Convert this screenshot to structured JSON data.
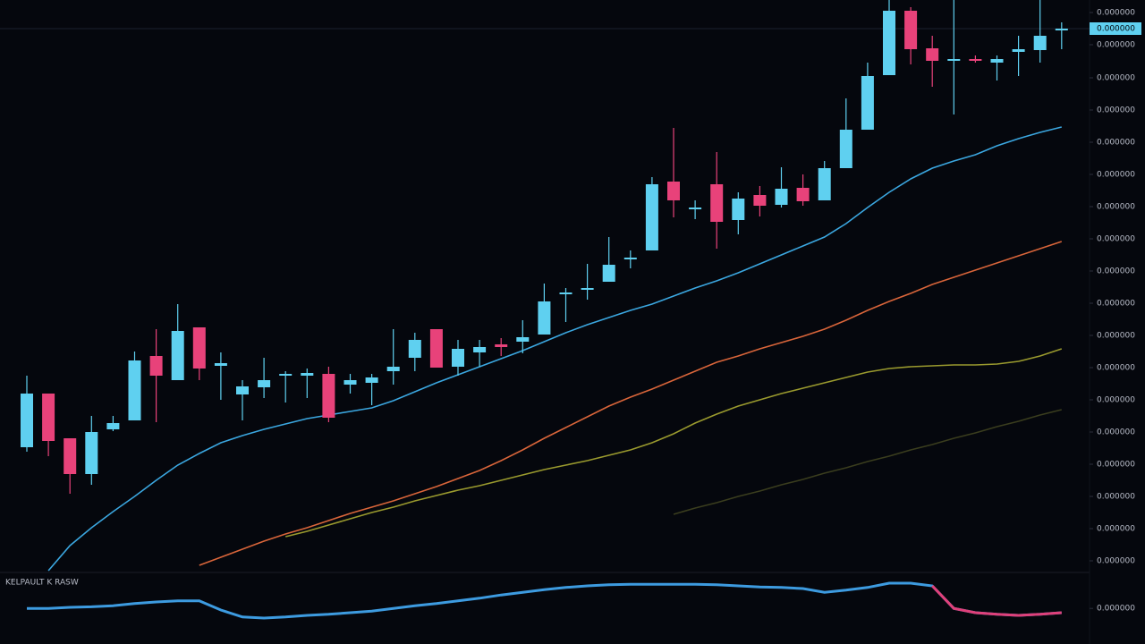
{
  "chart_data": [
    {
      "type": "candlestick",
      "up_color": "#5fd0f0",
      "down_color": "#e8427a",
      "ylim": [
        0,
        640
      ],
      "yticks": [
        {
          "value": 626,
          "label": "0.000000"
        },
        {
          "value": 590,
          "label": "0.000000"
        },
        {
          "value": 553,
          "label": "0.000000"
        },
        {
          "value": 517,
          "label": "0.000000"
        },
        {
          "value": 481,
          "label": "0.000000"
        },
        {
          "value": 445,
          "label": "0.000000"
        },
        {
          "value": 409,
          "label": "0.000000"
        },
        {
          "value": 373,
          "label": "0.000000"
        },
        {
          "value": 337,
          "label": "0.000000"
        },
        {
          "value": 301,
          "label": "0.000000"
        },
        {
          "value": 265,
          "label": "0.000000"
        },
        {
          "value": 229,
          "label": "0.000000"
        },
        {
          "value": 193,
          "label": "0.000000"
        },
        {
          "value": 157,
          "label": "0.000000"
        },
        {
          "value": 121,
          "label": "0.000000"
        },
        {
          "value": 85,
          "label": "0.000000"
        },
        {
          "value": 49,
          "label": "0.000000"
        },
        {
          "value": 13,
          "label": "0.000000"
        }
      ],
      "last_price": {
        "value": 608,
        "label": "0.000000"
      },
      "open": [
        140,
        200,
        150,
        110,
        160,
        170,
        242,
        215,
        274,
        231,
        199,
        207,
        221,
        220,
        222,
        210,
        212,
        225,
        240,
        272,
        230,
        246,
        255,
        258,
        266,
        312,
        316,
        325,
        350,
        360,
        437,
        406,
        434,
        394,
        422,
        411,
        430,
        416,
        452,
        495,
        556,
        628,
        586,
        573,
        574,
        570,
        582,
        584,
        607
      ],
      "high": [
        220,
        200,
        150,
        175,
        175,
        247,
        272,
        300,
        274,
        246,
        215,
        240,
        225,
        228,
        230,
        222,
        222,
        272,
        268,
        272,
        260,
        260,
        262,
        282,
        323,
        318,
        345,
        375,
        360,
        442,
        497,
        416,
        470,
        425,
        432,
        453,
        445,
        460,
        530,
        570,
        640,
        632,
        600,
        640,
        578,
        578,
        600,
        640,
        615
      ],
      "low": [
        135,
        130,
        88,
        98,
        158,
        170,
        168,
        215,
        215,
        193,
        170,
        195,
        190,
        195,
        168,
        200,
        187,
        210,
        225,
        229,
        220,
        230,
        242,
        245,
        266,
        280,
        305,
        325,
        340,
        360,
        397,
        395,
        362,
        378,
        398,
        408,
        410,
        416,
        452,
        495,
        556,
        568,
        543,
        512,
        570,
        550,
        555,
        570,
        585
      ],
      "close": [
        200,
        147,
        110,
        157,
        167,
        237,
        220,
        270,
        228,
        234,
        208,
        215,
        222,
        223,
        173,
        215,
        218,
        230,
        260,
        229,
        250,
        252,
        252,
        263,
        303,
        313,
        318,
        344,
        352,
        434,
        416,
        408,
        392,
        418,
        410,
        429,
        415,
        452,
        495,
        555,
        628,
        585,
        572,
        574,
        573,
        574,
        585,
        600,
        608
      ],
      "series": [
        {
          "color": "#3ba7e0",
          "values": [
            null,
            2,
            30,
            50,
            68,
            85,
            103,
            120,
            133,
            145,
            153,
            160,
            166,
            172,
            176,
            180,
            184,
            192,
            202,
            212,
            221,
            230,
            239,
            248,
            258,
            268,
            277,
            285,
            293,
            300,
            309,
            318,
            326,
            335,
            345,
            355,
            365,
            375,
            390,
            408,
            425,
            440,
            452,
            460,
            467,
            477,
            485,
            492,
            498
          ]
        },
        {
          "color": "#d9653a",
          "values": [
            null,
            null,
            null,
            null,
            null,
            null,
            null,
            null,
            8,
            17,
            26,
            35,
            43,
            50,
            58,
            66,
            73,
            80,
            88,
            96,
            105,
            114,
            125,
            137,
            150,
            162,
            174,
            186,
            196,
            205,
            215,
            225,
            235,
            242,
            250,
            257,
            264,
            272,
            282,
            293,
            303,
            312,
            322,
            330,
            338,
            346,
            354,
            362,
            370
          ]
        },
        {
          "color": "#9a9a2e",
          "values": [
            null,
            null,
            null,
            null,
            null,
            null,
            null,
            null,
            null,
            null,
            null,
            null,
            40,
            46,
            53,
            60,
            67,
            73,
            80,
            86,
            92,
            97,
            103,
            109,
            115,
            120,
            125,
            131,
            137,
            145,
            155,
            167,
            177,
            186,
            193,
            200,
            206,
            212,
            218,
            224,
            228,
            230,
            231,
            232,
            232,
            233,
            236,
            242,
            250
          ]
        },
        {
          "color": "#3a3d1e",
          "values": [
            null,
            null,
            null,
            null,
            null,
            null,
            null,
            null,
            null,
            null,
            null,
            null,
            null,
            null,
            null,
            null,
            null,
            null,
            null,
            null,
            null,
            null,
            null,
            null,
            null,
            null,
            null,
            null,
            null,
            null,
            65,
            72,
            78,
            85,
            91,
            98,
            104,
            111,
            117,
            124,
            130,
            137,
            143,
            150,
            156,
            163,
            169,
            176,
            182
          ]
        }
      ]
    },
    {
      "type": "line",
      "title": "KELPAULT K RASW",
      "ylim": [
        0,
        100
      ],
      "yticks": [
        {
          "value": 33,
          "label": "0.000000"
        }
      ],
      "series": [
        {
          "color": "#3d9be0",
          "values": [
            33,
            33,
            35,
            36,
            38,
            42,
            45,
            47,
            47,
            30,
            17,
            15,
            17,
            20,
            22,
            25,
            28,
            33,
            38,
            42,
            47,
            52,
            58,
            63,
            68,
            72,
            75,
            77,
            78,
            78,
            78,
            78,
            77,
            75,
            73,
            72,
            70,
            63,
            67,
            72,
            80,
            80,
            75,
            33,
            25,
            22,
            20,
            22,
            25
          ]
        },
        {
          "color": "#e0407a",
          "values": [
            null,
            null,
            null,
            null,
            null,
            null,
            null,
            null,
            null,
            null,
            null,
            null,
            null,
            null,
            null,
            null,
            null,
            null,
            null,
            null,
            null,
            null,
            null,
            null,
            null,
            null,
            null,
            null,
            null,
            null,
            null,
            null,
            null,
            null,
            null,
            null,
            null,
            null,
            null,
            null,
            null,
            null,
            75,
            33,
            25,
            22,
            20,
            22,
            25
          ]
        }
      ]
    }
  ]
}
